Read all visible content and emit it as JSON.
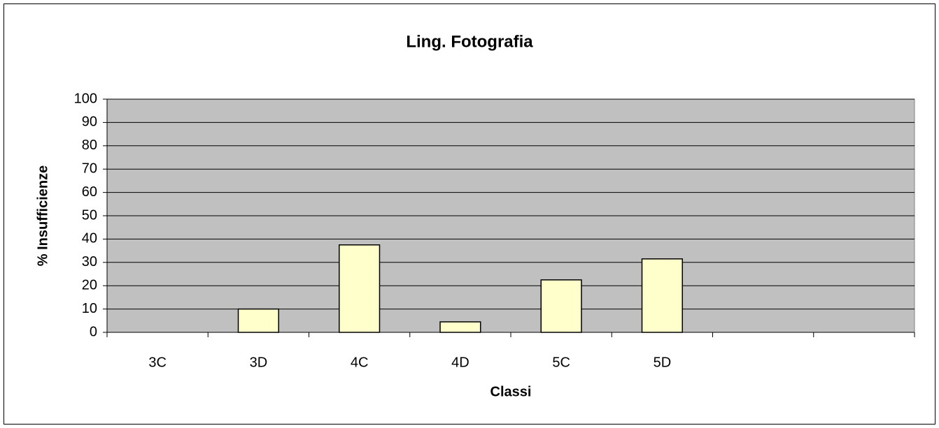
{
  "chart_data": {
    "type": "bar",
    "title": "Ling. Fotografia",
    "x_label": "Classi",
    "y_label": "% Insufficienze",
    "categories": [
      "3C",
      "3D",
      "4C",
      "4D",
      "5C",
      "5D",
      null,
      null
    ],
    "values": [
      0,
      10,
      37.5,
      4.5,
      22.5,
      31.5,
      null,
      null
    ],
    "color": "#ffffcc",
    "ylim": [
      0,
      100
    ],
    "yticks": [
      0,
      10,
      20,
      30,
      40,
      50,
      60,
      70,
      80,
      90,
      100
    ],
    "grid": true
  }
}
